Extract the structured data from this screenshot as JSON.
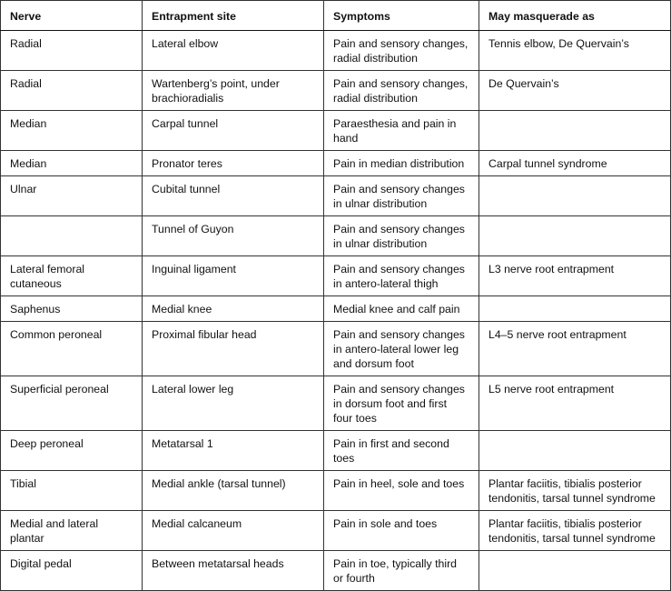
{
  "table": {
    "header": [
      "Nerve",
      "Entrapment site",
      "Symptoms",
      "May masquerade as"
    ],
    "rows": [
      [
        [
          "Radial"
        ],
        [
          "Lateral elbow"
        ],
        [
          "Pain and sensory changes,",
          "radial distribution"
        ],
        [
          "Tennis elbow, De Quervain’s"
        ]
      ],
      [
        [
          "Radial"
        ],
        [
          "Wartenberg’s point, under",
          "brachioradialis"
        ],
        [
          "Pain and sensory changes,",
          "radial distribution"
        ],
        [
          "De Quervain’s"
        ]
      ],
      [
        [
          "Median"
        ],
        [
          "Carpal tunnel"
        ],
        [
          "Paraesthesia and pain in",
          "hand"
        ],
        []
      ],
      [
        [
          "Median"
        ],
        [
          "Pronator teres"
        ],
        [
          "Pain in median distribution"
        ],
        [
          "Carpal tunnel syndrome"
        ]
      ],
      [
        [
          "Ulnar"
        ],
        [
          "Cubital tunnel"
        ],
        [
          "Pain and sensory changes",
          "in ulnar distribution"
        ],
        []
      ],
      [
        [],
        [
          "Tunnel of Guyon"
        ],
        [
          "Pain and sensory changes",
          "in ulnar distribution"
        ],
        []
      ],
      [
        [
          "Lateral femoral",
          "cutaneous"
        ],
        [
          "Inguinal ligament"
        ],
        [
          "Pain and sensory changes",
          "in antero-lateral thigh"
        ],
        [
          "L3 nerve root entrapment"
        ]
      ],
      [
        [
          "Saphenus"
        ],
        [
          "Medial knee"
        ],
        [
          "Medial knee and calf pain"
        ],
        []
      ],
      [
        [
          "Common peroneal"
        ],
        [
          "Proximal fibular head"
        ],
        [
          "Pain and sensory changes",
          "in antero-lateral lower leg",
          "and dorsum foot"
        ],
        [
          "L4–5 nerve root entrapment"
        ]
      ],
      [
        [
          "Superficial peroneal"
        ],
        [
          "Lateral lower leg"
        ],
        [
          "Pain and sensory changes",
          "in dorsum foot and first",
          "four toes"
        ],
        [
          "L5 nerve root entrapment"
        ]
      ],
      [
        [
          "Deep peroneal"
        ],
        [
          "Metatarsal 1"
        ],
        [
          "Pain in first and second",
          "toes"
        ],
        []
      ],
      [
        [
          "Tibial"
        ],
        [
          "Medial ankle (tarsal tunnel)"
        ],
        [
          "Pain in heel, sole and toes"
        ],
        [
          "Plantar faciitis, tibialis posterior",
          "tendonitis, tarsal tunnel syndrome"
        ]
      ],
      [
        [
          "Medial and lateral",
          "plantar"
        ],
        [
          "Medial calcaneum"
        ],
        [
          "Pain in sole and toes"
        ],
        [
          "Plantar faciitis, tibialis posterior",
          "tendonitis, tarsal tunnel syndrome"
        ]
      ],
      [
        [
          "Digital pedal"
        ],
        [
          "Between metatarsal heads"
        ],
        [
          "Pain in toe, typically third",
          "or fourth"
        ],
        []
      ]
    ]
  }
}
